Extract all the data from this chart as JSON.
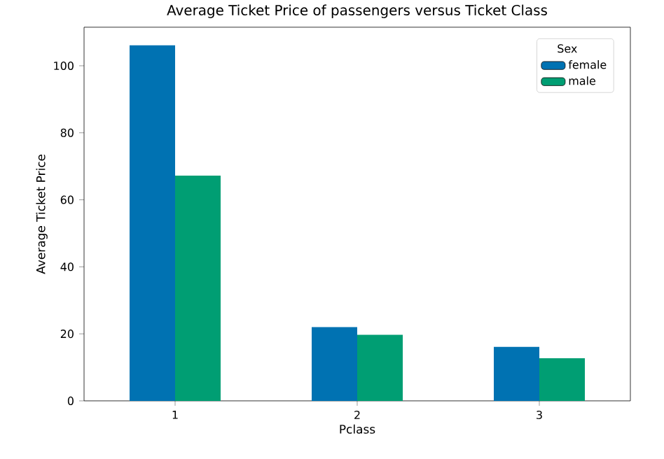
{
  "chart_data": {
    "type": "bar",
    "title": "Average Ticket Price of passengers versus Ticket Class",
    "xlabel": "Pclass",
    "ylabel": "Average Ticket Price",
    "legend_title": "Sex",
    "categories": [
      "1",
      "2",
      "3"
    ],
    "series": [
      {
        "name": "female",
        "color": "#0072b2",
        "values": [
          106.1,
          22.0,
          16.1
        ]
      },
      {
        "name": "male",
        "color": "#009e73",
        "values": [
          67.2,
          19.7,
          12.7
        ]
      }
    ],
    "ylim": [
      0,
      111.5
    ],
    "yticks": [
      0,
      20,
      40,
      60,
      80,
      100
    ],
    "legend": "top right"
  }
}
